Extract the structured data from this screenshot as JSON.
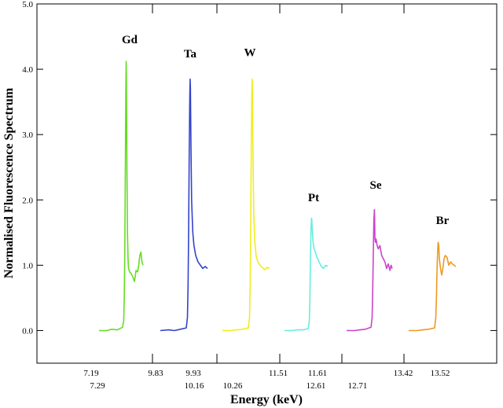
{
  "chart_data": {
    "type": "line",
    "title": "",
    "xlabel": "Energy (keV)",
    "ylabel": "Normalised Fluorescence Spectrum",
    "ylim": [
      -0.5,
      5.0
    ],
    "grid": false,
    "legend": "none",
    "y_ticks": [
      "0.0",
      "1.0",
      "2.0",
      "3.0",
      "4.0",
      "5.0"
    ],
    "y_tick_values": [
      0,
      1,
      2,
      3,
      4,
      5
    ],
    "x_tick_labels_upper": [
      "7.19",
      "9.83",
      "9.93",
      "11.51",
      "11.61",
      "13.42",
      "13.52"
    ],
    "x_tick_labels_lower": [
      "7.29",
      "10.16",
      "10.26",
      "12.61",
      "12.71"
    ],
    "series": [
      {
        "name": "Gd",
        "color": "#66dd22",
        "x": [
          0,
          0.14,
          0.24,
          0.34,
          0.44,
          0.46,
          0.47,
          0.48,
          0.49,
          0.5,
          0.505,
          0.51,
          0.52,
          0.53,
          0.54,
          0.55,
          0.57,
          0.6,
          0.63,
          0.66,
          0.69,
          0.72,
          0.74,
          0.76,
          0.78,
          0.8,
          0.82
        ],
        "y": [
          0.0,
          0.0,
          0.02,
          0.01,
          0.05,
          0.15,
          0.5,
          1.2,
          2.5,
          3.7,
          4.12,
          3.9,
          2.5,
          1.5,
          1.1,
          0.95,
          0.9,
          0.87,
          0.82,
          0.75,
          0.92,
          0.9,
          1.0,
          1.15,
          1.2,
          1.05,
          1.0
        ]
      },
      {
        "name": "Ta",
        "color": "#3344cc",
        "x": [
          0,
          0.14,
          0.24,
          0.34,
          0.44,
          0.46,
          0.47,
          0.48,
          0.49,
          0.5,
          0.505,
          0.51,
          0.52,
          0.53,
          0.55,
          0.57,
          0.6,
          0.64,
          0.68,
          0.72,
          0.76,
          0.8
        ],
        "y": [
          0.0,
          0.01,
          0.0,
          0.02,
          0.04,
          0.2,
          0.7,
          1.5,
          2.8,
          3.6,
          3.85,
          3.7,
          2.8,
          2.0,
          1.5,
          1.3,
          1.15,
          1.05,
          1.0,
          0.95,
          0.98,
          0.95
        ]
      },
      {
        "name": "W",
        "color": "#eeee22",
        "x": [
          0,
          0.14,
          0.24,
          0.34,
          0.44,
          0.46,
          0.47,
          0.48,
          0.49,
          0.5,
          0.505,
          0.51,
          0.52,
          0.53,
          0.55,
          0.57,
          0.6,
          0.64,
          0.68,
          0.72,
          0.76,
          0.8
        ],
        "y": [
          0.0,
          0.0,
          0.01,
          0.02,
          0.04,
          0.2,
          0.7,
          1.6,
          2.9,
          3.7,
          3.85,
          3.6,
          2.6,
          1.8,
          1.35,
          1.15,
          1.05,
          1.0,
          0.96,
          0.93,
          0.97,
          0.95
        ]
      },
      {
        "name": "Pt",
        "color": "#66eedd",
        "x": [
          0,
          0.14,
          0.24,
          0.34,
          0.44,
          0.46,
          0.47,
          0.48,
          0.49,
          0.5,
          0.505,
          0.51,
          0.52,
          0.53,
          0.55,
          0.57,
          0.6,
          0.64,
          0.68,
          0.72,
          0.76,
          0.8
        ],
        "y": [
          0.0,
          0.0,
          0.01,
          0.01,
          0.03,
          0.15,
          0.5,
          1.1,
          1.55,
          1.72,
          1.7,
          1.6,
          1.45,
          1.35,
          1.25,
          1.2,
          1.12,
          1.05,
          0.98,
          0.95,
          1.0,
          0.98
        ]
      },
      {
        "name": "Se",
        "color": "#cc44cc",
        "x": [
          0,
          0.14,
          0.24,
          0.34,
          0.44,
          0.46,
          0.47,
          0.48,
          0.49,
          0.5,
          0.505,
          0.51,
          0.52,
          0.53,
          0.55,
          0.57,
          0.6,
          0.63,
          0.66,
          0.69,
          0.72,
          0.75,
          0.78,
          0.8,
          0.82
        ],
        "y": [
          0.0,
          0.0,
          0.01,
          0.02,
          0.05,
          0.2,
          0.6,
          1.2,
          1.7,
          1.85,
          1.7,
          1.4,
          1.35,
          1.4,
          1.3,
          1.25,
          1.3,
          1.15,
          1.1,
          1.05,
          0.95,
          1.02,
          0.92,
          1.0,
          0.95
        ]
      },
      {
        "name": "Br",
        "color": "#ee9922",
        "x": [
          0,
          0.14,
          0.24,
          0.34,
          0.44,
          0.46,
          0.47,
          0.48,
          0.49,
          0.5,
          0.51,
          0.52,
          0.54,
          0.56,
          0.58,
          0.6,
          0.62,
          0.65,
          0.68,
          0.71,
          0.74,
          0.77,
          0.8
        ],
        "y": [
          0.0,
          0.0,
          0.01,
          0.02,
          0.04,
          0.2,
          0.5,
          0.9,
          1.2,
          1.35,
          1.3,
          1.1,
          0.95,
          0.85,
          0.95,
          1.1,
          1.15,
          1.12,
          1.0,
          1.05,
          1.02,
          1.0,
          0.98
        ]
      }
    ],
    "peak_labels": [
      {
        "text": "Gd",
        "x_offset": 0.4,
        "y": 4.4
      },
      {
        "text": "Ta",
        "x_offset": 0.45,
        "y": 4.18
      },
      {
        "text": "W",
        "x_offset": 0.38,
        "y": 4.2
      },
      {
        "text": "Pt",
        "x_offset": 0.44,
        "y": 1.98
      },
      {
        "text": "Se",
        "x_offset": 0.44,
        "y": 2.17
      },
      {
        "text": "Br",
        "x_offset": 0.43,
        "y": 1.63
      }
    ]
  }
}
